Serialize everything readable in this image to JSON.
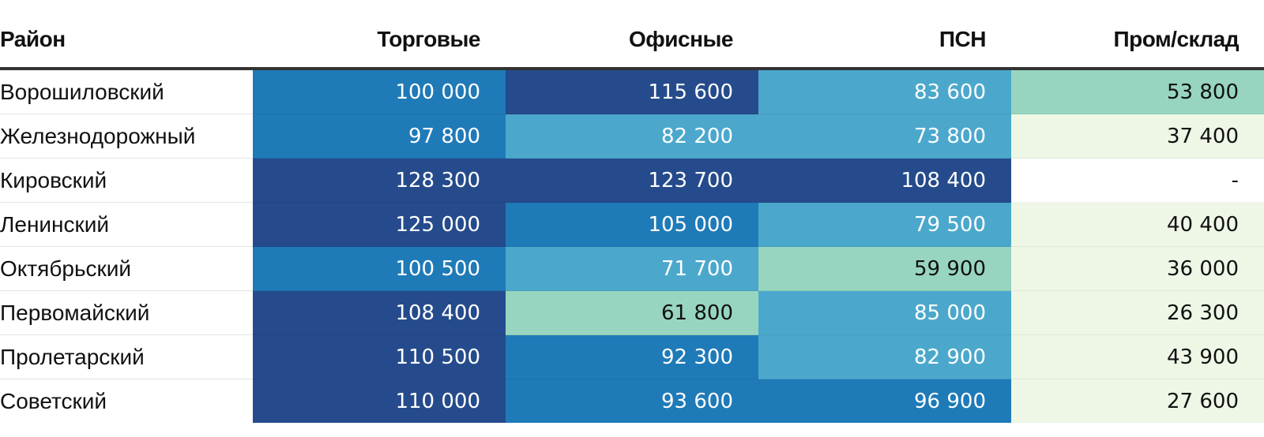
{
  "chart_data": {
    "type": "table",
    "columns": [
      "Район",
      "Торговые",
      "Офисные",
      "ПСН",
      "Пром/склад"
    ],
    "rows": [
      {
        "district": "Ворошиловский",
        "values": [
          "100 000",
          "115 600",
          "83 600",
          "53 800"
        ]
      },
      {
        "district": "Железнодорожный",
        "values": [
          "97 800",
          "82 200",
          "73 800",
          "37 400"
        ]
      },
      {
        "district": "Кировский",
        "values": [
          "128 300",
          "123 700",
          "108 400",
          "-"
        ]
      },
      {
        "district": "Ленинский",
        "values": [
          "125 000",
          "105 000",
          "79 500",
          "40 400"
        ]
      },
      {
        "district": "Октябрьский",
        "values": [
          "100 500",
          "71 700",
          "59 900",
          "36 000"
        ]
      },
      {
        "district": "Первомайский",
        "values": [
          "108 400",
          "61 800",
          "85 000",
          "26 300"
        ]
      },
      {
        "district": "Пролетарский",
        "values": [
          "110 500",
          "92 300",
          "82 900",
          "43 900"
        ]
      },
      {
        "district": "Советский",
        "values": [
          "110 000",
          "93 600",
          "96 900",
          "27 600"
        ]
      }
    ],
    "color_scale": {
      "dark": "#254b8c",
      "mid": "#1f7ab8",
      "light": "#4ba8cc",
      "pale": "#97d5c0",
      "faint": "#eef7e6",
      "empty": "#ffffff"
    },
    "cell_colors": [
      [
        "mid",
        "dark",
        "light",
        "pale"
      ],
      [
        "mid",
        "light",
        "light",
        "faint"
      ],
      [
        "dark",
        "dark",
        "dark",
        "empty"
      ],
      [
        "dark",
        "mid",
        "light",
        "faint"
      ],
      [
        "mid",
        "light",
        "pale",
        "faint"
      ],
      [
        "dark",
        "pale",
        "light",
        "faint"
      ],
      [
        "dark",
        "mid",
        "light",
        "faint"
      ],
      [
        "dark",
        "mid",
        "mid",
        "faint"
      ]
    ],
    "text_colors": {
      "dark": "#ffffff",
      "mid": "#ffffff",
      "light": "#ffffff",
      "pale": "#111111",
      "faint": "#111111",
      "empty": "#111111"
    }
  }
}
